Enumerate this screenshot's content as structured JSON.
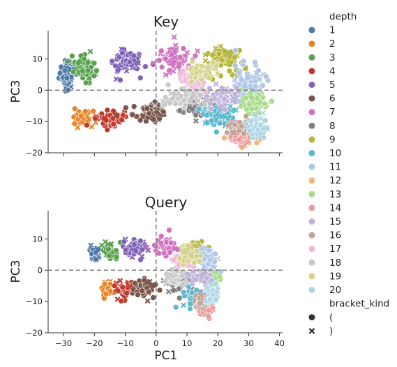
{
  "chart_data": [
    {
      "type": "scatter",
      "title": "Key",
      "xlabel": "",
      "ylabel": "PC3",
      "xlim": [
        -35,
        41
      ],
      "ylim": [
        -20,
        19
      ],
      "xticks": [
        -30,
        -20,
        -10,
        0,
        10,
        20,
        30,
        40
      ],
      "xtick_labels_visible": false,
      "yticks": [
        -20,
        -10,
        0,
        10
      ],
      "ytick_labels": [
        "−20",
        "−10",
        "0",
        "10"
      ],
      "reference_lines": {
        "x": 0,
        "y": 0,
        "style": "dashed"
      },
      "clusters": [
        {
          "depth": 1,
          "cx": -29,
          "cy": 5,
          "sx": 2.2,
          "sy": 4
        },
        {
          "depth": 2,
          "cx": -24,
          "cy": -9,
          "sx": 2.8,
          "sy": 2.2
        },
        {
          "depth": 3,
          "cx": -23,
          "cy": 7,
          "sx": 3,
          "sy": 3.5
        },
        {
          "depth": 4,
          "cx": -15,
          "cy": -9,
          "sx": 4,
          "sy": 2.5
        },
        {
          "depth": 5,
          "cx": -10,
          "cy": 9,
          "sx": 5,
          "sy": 3.5
        },
        {
          "depth": 6,
          "cx": -2,
          "cy": -7,
          "sx": 5,
          "sy": 2.5
        },
        {
          "depth": 7,
          "cx": 5,
          "cy": 10,
          "sx": 6,
          "sy": 4
        },
        {
          "depth": 8,
          "cx": 13,
          "cy": -5,
          "sx": 6,
          "sy": 3
        },
        {
          "depth": 9,
          "cx": 22,
          "cy": 10,
          "sx": 6,
          "sy": 3.5
        },
        {
          "depth": 10,
          "cx": 20,
          "cy": -8,
          "sx": 5,
          "sy": 3
        },
        {
          "depth": 11,
          "cx": 30,
          "cy": 3,
          "sx": 5,
          "sy": 5
        },
        {
          "depth": 12,
          "cx": 29,
          "cy": -14,
          "sx": 4,
          "sy": 3
        },
        {
          "depth": 13,
          "cx": 32,
          "cy": -4,
          "sx": 4,
          "sy": 3
        },
        {
          "depth": 14,
          "cx": 27,
          "cy": -15,
          "sx": 3,
          "sy": 2
        },
        {
          "depth": 15,
          "cx": 22,
          "cy": -2,
          "sx": 4,
          "sy": 3
        },
        {
          "depth": 16,
          "cx": 27,
          "cy": -12,
          "sx": 3,
          "sy": 2
        },
        {
          "depth": 17,
          "cx": 12,
          "cy": 3,
          "sx": 4,
          "sy": 3
        },
        {
          "depth": 18,
          "cx": 8,
          "cy": -3,
          "sx": 5,
          "sy": 3
        },
        {
          "depth": 19,
          "cx": 15,
          "cy": 6,
          "sx": 4,
          "sy": 3
        },
        {
          "depth": 20,
          "cx": 33,
          "cy": -12,
          "sx": 3,
          "sy": 3
        }
      ]
    },
    {
      "type": "scatter",
      "title": "Query",
      "xlabel": "PC1",
      "ylabel": "PC3",
      "xlim": [
        -35,
        41
      ],
      "ylim": [
        -20,
        19
      ],
      "xticks": [
        -30,
        -20,
        -10,
        0,
        10,
        20,
        30,
        40
      ],
      "xtick_labels": [
        "−30",
        "−20",
        "−10",
        "0",
        "10",
        "20",
        "30",
        "40"
      ],
      "yticks": [
        -20,
        -10,
        0,
        10
      ],
      "ytick_labels": [
        "−20",
        "−10",
        "0",
        "10"
      ],
      "reference_lines": {
        "x": 0,
        "y": 0,
        "style": "dashed"
      },
      "clusters": [
        {
          "depth": 1,
          "cx": -20,
          "cy": 5,
          "sx": 1,
          "sy": 2.5
        },
        {
          "depth": 2,
          "cx": -16,
          "cy": -6,
          "sx": 1.5,
          "sy": 2.5
        },
        {
          "depth": 3,
          "cx": -15,
          "cy": 6,
          "sx": 2.5,
          "sy": 3
        },
        {
          "depth": 4,
          "cx": -10,
          "cy": -6,
          "sx": 3,
          "sy": 2.5
        },
        {
          "depth": 5,
          "cx": -7,
          "cy": 7,
          "sx": 3.5,
          "sy": 3
        },
        {
          "depth": 6,
          "cx": -3,
          "cy": -6,
          "sx": 4,
          "sy": 2.5
        },
        {
          "depth": 7,
          "cx": 2,
          "cy": 8,
          "sx": 4,
          "sy": 3
        },
        {
          "depth": 8,
          "cx": 8,
          "cy": -4,
          "sx": 4,
          "sy": 3
        },
        {
          "depth": 9,
          "cx": 13,
          "cy": 7,
          "sx": 3.5,
          "sy": 3
        },
        {
          "depth": 10,
          "cx": 12,
          "cy": -9,
          "sx": 3,
          "sy": 3
        },
        {
          "depth": 11,
          "cx": 17,
          "cy": 3,
          "sx": 3,
          "sy": 3
        },
        {
          "depth": 12,
          "cx": 15,
          "cy": -11,
          "sx": 2.5,
          "sy": 2.5
        },
        {
          "depth": 13,
          "cx": 18,
          "cy": -3,
          "sx": 2.5,
          "sy": 2.5
        },
        {
          "depth": 14,
          "cx": 16,
          "cy": -12,
          "sx": 2,
          "sy": 2
        },
        {
          "depth": 15,
          "cx": 14,
          "cy": -2,
          "sx": 3,
          "sy": 2
        },
        {
          "depth": 16,
          "cx": 15,
          "cy": -10,
          "sx": 2,
          "sy": 2
        },
        {
          "depth": 17,
          "cx": 9,
          "cy": 3,
          "sx": 3,
          "sy": 2.5
        },
        {
          "depth": 18,
          "cx": 6,
          "cy": -2,
          "sx": 3,
          "sy": 2.5
        },
        {
          "depth": 19,
          "cx": 11,
          "cy": 5,
          "sx": 3,
          "sy": 2.5
        },
        {
          "depth": 20,
          "cx": 18,
          "cy": -8,
          "sx": 2,
          "sy": 2.5
        }
      ]
    }
  ],
  "legend": {
    "placement": "right",
    "hue_title": "depth",
    "hue_entries": [
      {
        "label": "1",
        "color": "#4e79a7"
      },
      {
        "label": "2",
        "color": "#e6842a"
      },
      {
        "label": "3",
        "color": "#59a14f"
      },
      {
        "label": "4",
        "color": "#c0392b"
      },
      {
        "label": "5",
        "color": "#8064b8"
      },
      {
        "label": "6",
        "color": "#7a554a"
      },
      {
        "label": "7",
        "color": "#cf72c0"
      },
      {
        "label": "8",
        "color": "#7f7f7f"
      },
      {
        "label": "9",
        "color": "#b5b53c"
      },
      {
        "label": "10",
        "color": "#5cb8cc"
      },
      {
        "label": "11",
        "color": "#aec6e8"
      },
      {
        "label": "12",
        "color": "#f2b67a"
      },
      {
        "label": "13",
        "color": "#a8dc8c"
      },
      {
        "label": "14",
        "color": "#ec9a9a"
      },
      {
        "label": "15",
        "color": "#bfb3d9"
      },
      {
        "label": "16",
        "color": "#c4a49a"
      },
      {
        "label": "17",
        "color": "#eebad8"
      },
      {
        "label": "18",
        "color": "#c8c8c8"
      },
      {
        "label": "19",
        "color": "#d4d48e"
      },
      {
        "label": "20",
        "color": "#aed6e6"
      }
    ],
    "style_title": "bracket_kind",
    "style_entries": [
      {
        "label": "(",
        "marker": "circle"
      },
      {
        "label": ")",
        "marker": "x"
      }
    ]
  }
}
